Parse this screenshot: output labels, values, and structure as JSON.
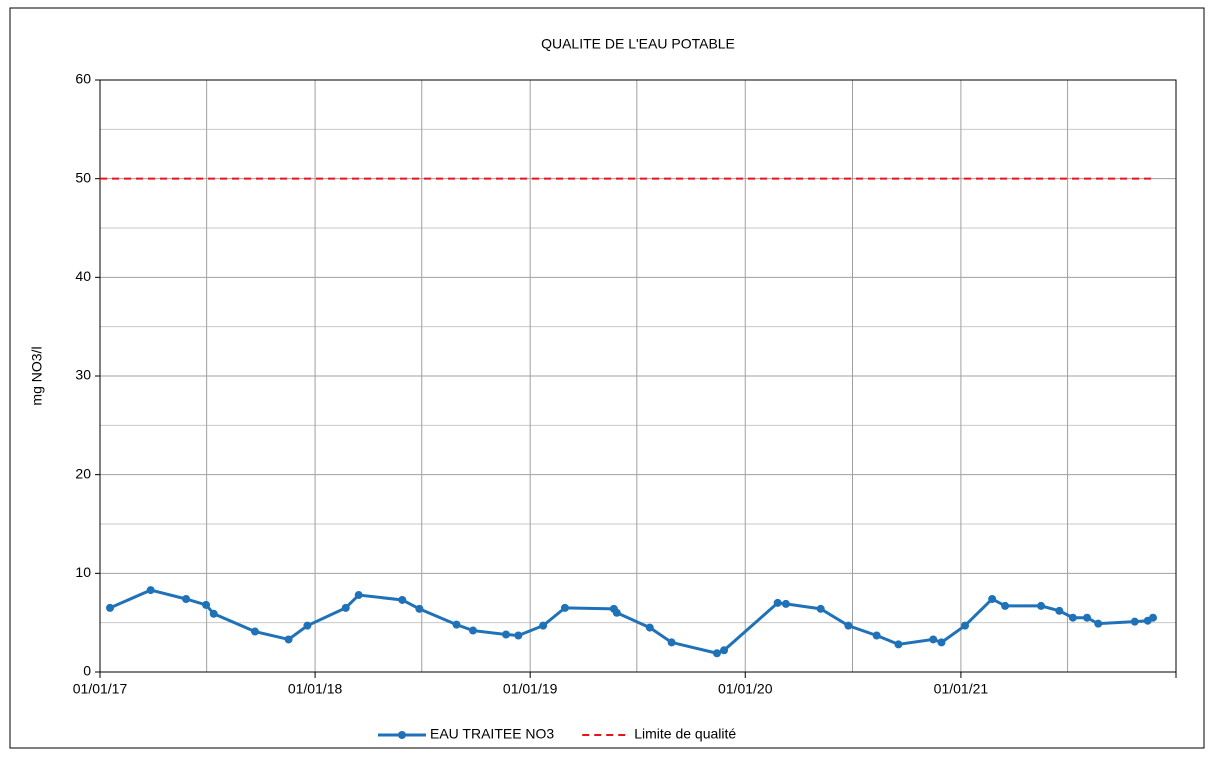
{
  "chart_data": {
    "type": "line",
    "title": "QUALITE  DE L'EAU POTABLE",
    "y_label": "mg NO3/l",
    "xlim": [
      "01/01/17",
      "01/01/22"
    ],
    "xticks": [
      "01/01/17",
      "01/01/18",
      "01/01/19",
      "01/01/20",
      "01/01/21"
    ],
    "xminor": [
      "01/07/17",
      "01/07/18",
      "01/07/19",
      "01/07/20",
      "01/07/21"
    ],
    "ylim": [
      0,
      60
    ],
    "yticks": [
      0,
      10,
      20,
      30,
      40,
      50,
      60
    ],
    "yminor": [
      5,
      15,
      25,
      35,
      45,
      55
    ],
    "grid": true,
    "legend": "bottom",
    "series": [
      {
        "name": "EAU TRAITEE NO3",
        "color": "#1f72b8",
        "marker": true,
        "dashed": false,
        "x": [
          "18/01/17",
          "28/03/17",
          "27/05/17",
          "30/06/17",
          "13/07/17",
          "21/09/17",
          "17/11/17",
          "19/12/17",
          "22/02/18",
          "16/03/18",
          "29/05/18",
          "27/06/18",
          "29/08/18",
          "26/09/18",
          "21/11/18",
          "12/12/18",
          "23/01/19",
          "01/03/19",
          "23/05/19",
          "28/05/19",
          "23/07/19",
          "29/08/19",
          "14/11/19",
          "26/11/19",
          "25/02/20",
          "10/03/20",
          "08/05/20",
          "24/06/20",
          "11/08/20",
          "17/09/20",
          "15/11/20",
          "29/11/20",
          "08/01/21",
          "23/02/21",
          "17/03/21",
          "17/05/21",
          "17/06/21",
          "10/07/21",
          "03/08/21",
          "22/08/21",
          "23/10/21",
          "14/11/21",
          "23/11/21"
        ],
        "values": [
          6.5,
          8.3,
          7.4,
          6.8,
          5.9,
          4.1,
          3.3,
          4.7,
          6.5,
          7.8,
          7.3,
          6.4,
          4.8,
          4.2,
          3.8,
          3.7,
          4.7,
          6.5,
          6.4,
          6.0,
          4.5,
          3.0,
          1.9,
          2.2,
          7.0,
          6.9,
          6.4,
          4.7,
          3.7,
          2.8,
          3.3,
          3.0,
          4.7,
          7.4,
          6.7,
          6.7,
          6.2,
          5.5,
          5.5,
          4.9,
          5.1,
          5.2,
          5.5
        ]
      },
      {
        "name": "Limite de qualité",
        "color": "#e8141c",
        "marker": false,
        "dashed": true,
        "x": [
          "01/01/17",
          "23/11/21"
        ],
        "values": [
          50,
          50
        ]
      }
    ]
  }
}
